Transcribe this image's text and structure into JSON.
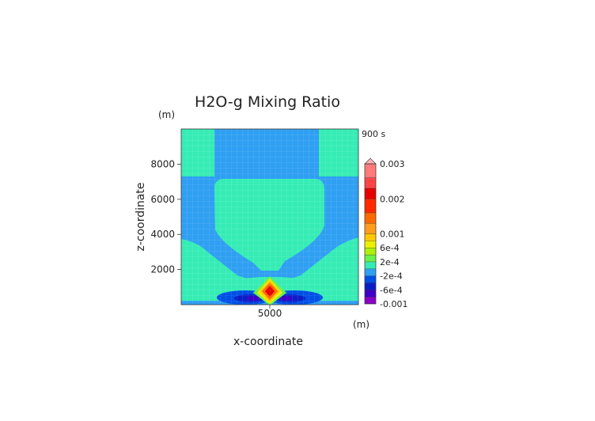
{
  "chart_data": {
    "type": "heatmap",
    "title": "H2O-g Mixing Ratio",
    "xlabel": "x-coordinate",
    "ylabel": "z-coordinate",
    "x_unit": "(m)",
    "y_unit": "(m)",
    "time_label": "900 s",
    "x_ticks": [
      5000
    ],
    "y_ticks": [
      2000,
      4000,
      6000,
      8000
    ],
    "xlim": [
      0,
      10000
    ],
    "ylim": [
      0,
      10000
    ],
    "grid": true,
    "colorbar": {
      "levels": [
        -0.001,
        -0.0008,
        -0.0006,
        -0.0004,
        -0.0002,
        0,
        0.0002,
        0.0004,
        0.0006,
        0.0008,
        0.001,
        0.0013,
        0.0016,
        0.002,
        0.0023,
        0.0026,
        0.003
      ],
      "colors": [
        "#8a00c8",
        "#3c00c8",
        "#0a1ec8",
        "#0050e6",
        "#2f9ff2",
        "#36ecb5",
        "#6cf04a",
        "#aef00a",
        "#ecf000",
        "#ffc800",
        "#ff9c1e",
        "#ff6a00",
        "#ff2a00",
        "#e60000",
        "#ff4545",
        "#ff7a7a",
        "#ffb4b4"
      ],
      "tick_labels": [
        {
          "text": "0.003",
          "value": 0.003
        },
        {
          "text": "0.002",
          "value": 0.002
        },
        {
          "text": "0.001",
          "value": 0.001
        },
        {
          "text": "6e-4",
          "value": 0.0006
        },
        {
          "text": "2e-4",
          "value": 0.0002
        },
        {
          "text": "-2e-4",
          "value": -0.0002
        },
        {
          "text": "-6e-4",
          "value": -0.0006
        },
        {
          "text": "-0.001",
          "value": -0.001
        }
      ]
    }
  }
}
